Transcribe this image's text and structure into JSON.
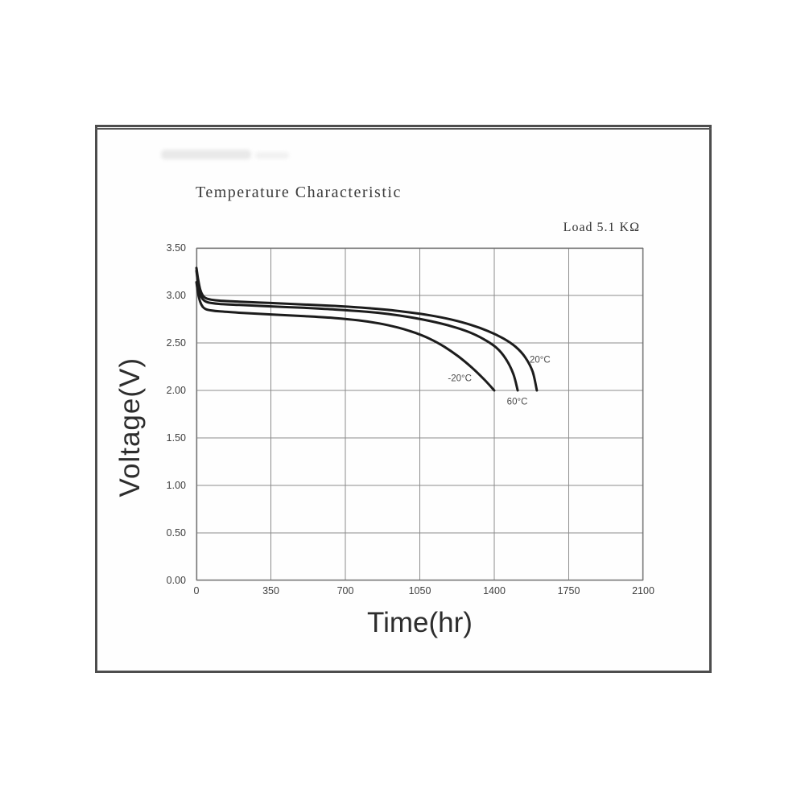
{
  "chart_data": {
    "type": "line",
    "title": "Temperature Characteristic",
    "annotation": "Load 5.1 KΩ",
    "xlabel": "Time(hr)",
    "ylabel": "Voltage(V)",
    "xlim": [
      0,
      2100
    ],
    "ylim": [
      0.0,
      3.5
    ],
    "x_ticks": [
      0,
      350,
      700,
      1050,
      1400,
      1750,
      2100
    ],
    "y_ticks": [
      "3.50",
      "3.00",
      "2.50",
      "2.00",
      "1.50",
      "1.00",
      "0.50",
      "0.00"
    ],
    "grid": true,
    "legend_position": "inline-labels",
    "line_color": "#1c1c1c",
    "grid_color": "#8c8c8c",
    "border_color": "#757575",
    "series": [
      {
        "name": "20°C",
        "points": [
          [
            0,
            3.29
          ],
          [
            8,
            3.17
          ],
          [
            18,
            3.06
          ],
          [
            30,
            3.0
          ],
          [
            45,
            2.97
          ],
          [
            70,
            2.955
          ],
          [
            110,
            2.945
          ],
          [
            200,
            2.935
          ],
          [
            350,
            2.92
          ],
          [
            500,
            2.905
          ],
          [
            650,
            2.89
          ],
          [
            800,
            2.868
          ],
          [
            900,
            2.848
          ],
          [
            1000,
            2.822
          ],
          [
            1100,
            2.79
          ],
          [
            1200,
            2.745
          ],
          [
            1290,
            2.69
          ],
          [
            1370,
            2.625
          ],
          [
            1440,
            2.55
          ],
          [
            1500,
            2.46
          ],
          [
            1545,
            2.35
          ],
          [
            1580,
            2.2
          ],
          [
            1600,
            2.0
          ]
        ]
      },
      {
        "name": "60°C",
        "points": [
          [
            0,
            3.26
          ],
          [
            8,
            3.12
          ],
          [
            18,
            3.01
          ],
          [
            30,
            2.96
          ],
          [
            45,
            2.935
          ],
          [
            70,
            2.92
          ],
          [
            110,
            2.91
          ],
          [
            200,
            2.9
          ],
          [
            350,
            2.885
          ],
          [
            500,
            2.87
          ],
          [
            650,
            2.852
          ],
          [
            800,
            2.828
          ],
          [
            900,
            2.805
          ],
          [
            1000,
            2.772
          ],
          [
            1100,
            2.73
          ],
          [
            1200,
            2.675
          ],
          [
            1280,
            2.615
          ],
          [
            1350,
            2.54
          ],
          [
            1410,
            2.45
          ],
          [
            1455,
            2.33
          ],
          [
            1490,
            2.17
          ],
          [
            1510,
            2.0
          ]
        ]
      },
      {
        "name": "-20°C",
        "points": [
          [
            0,
            3.14
          ],
          [
            8,
            3.02
          ],
          [
            18,
            2.93
          ],
          [
            30,
            2.88
          ],
          [
            45,
            2.855
          ],
          [
            70,
            2.842
          ],
          [
            110,
            2.832
          ],
          [
            200,
            2.818
          ],
          [
            350,
            2.8
          ],
          [
            500,
            2.783
          ],
          [
            650,
            2.762
          ],
          [
            760,
            2.738
          ],
          [
            860,
            2.705
          ],
          [
            950,
            2.66
          ],
          [
            1030,
            2.605
          ],
          [
            1100,
            2.54
          ],
          [
            1165,
            2.46
          ],
          [
            1230,
            2.36
          ],
          [
            1295,
            2.24
          ],
          [
            1355,
            2.11
          ],
          [
            1400,
            2.0
          ]
        ]
      }
    ],
    "series_labels": [
      {
        "text": "20°C",
        "x": 1615,
        "y": 2.31
      },
      {
        "text": "-20°C",
        "x": 1238,
        "y": 2.12
      },
      {
        "text": "60°C",
        "x": 1508,
        "y": 1.87
      }
    ]
  }
}
